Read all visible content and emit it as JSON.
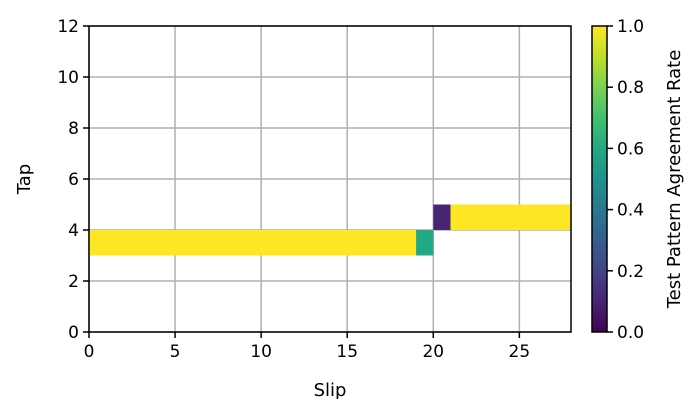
{
  "chart_data": {
    "type": "heatmap",
    "title": "",
    "xlabel": "Slip",
    "ylabel": "Tap",
    "xlim": [
      0,
      28
    ],
    "ylim": [
      0,
      12
    ],
    "xticks": [
      0,
      5,
      10,
      15,
      20,
      25
    ],
    "yticks": [
      0,
      2,
      4,
      6,
      8,
      10,
      12
    ],
    "grid": true,
    "colormap": "viridis",
    "colorbar": {
      "label": "Test Pattern Agreement Rate",
      "range": [
        0.0,
        1.0
      ],
      "ticks": [
        "0.0",
        "0.2",
        "0.4",
        "0.6",
        "0.8",
        "1.0"
      ]
    },
    "cells": [
      {
        "x0": 0,
        "x1": 19,
        "y0": 3,
        "y1": 4,
        "value": 1.0
      },
      {
        "x0": 19,
        "x1": 20,
        "y0": 3,
        "y1": 4,
        "value": 0.6
      },
      {
        "x0": 20,
        "x1": 21,
        "y0": 4,
        "y1": 5,
        "value": 0.1
      },
      {
        "x0": 21,
        "x1": 28,
        "y0": 4,
        "y1": 5,
        "value": 1.0
      }
    ]
  }
}
